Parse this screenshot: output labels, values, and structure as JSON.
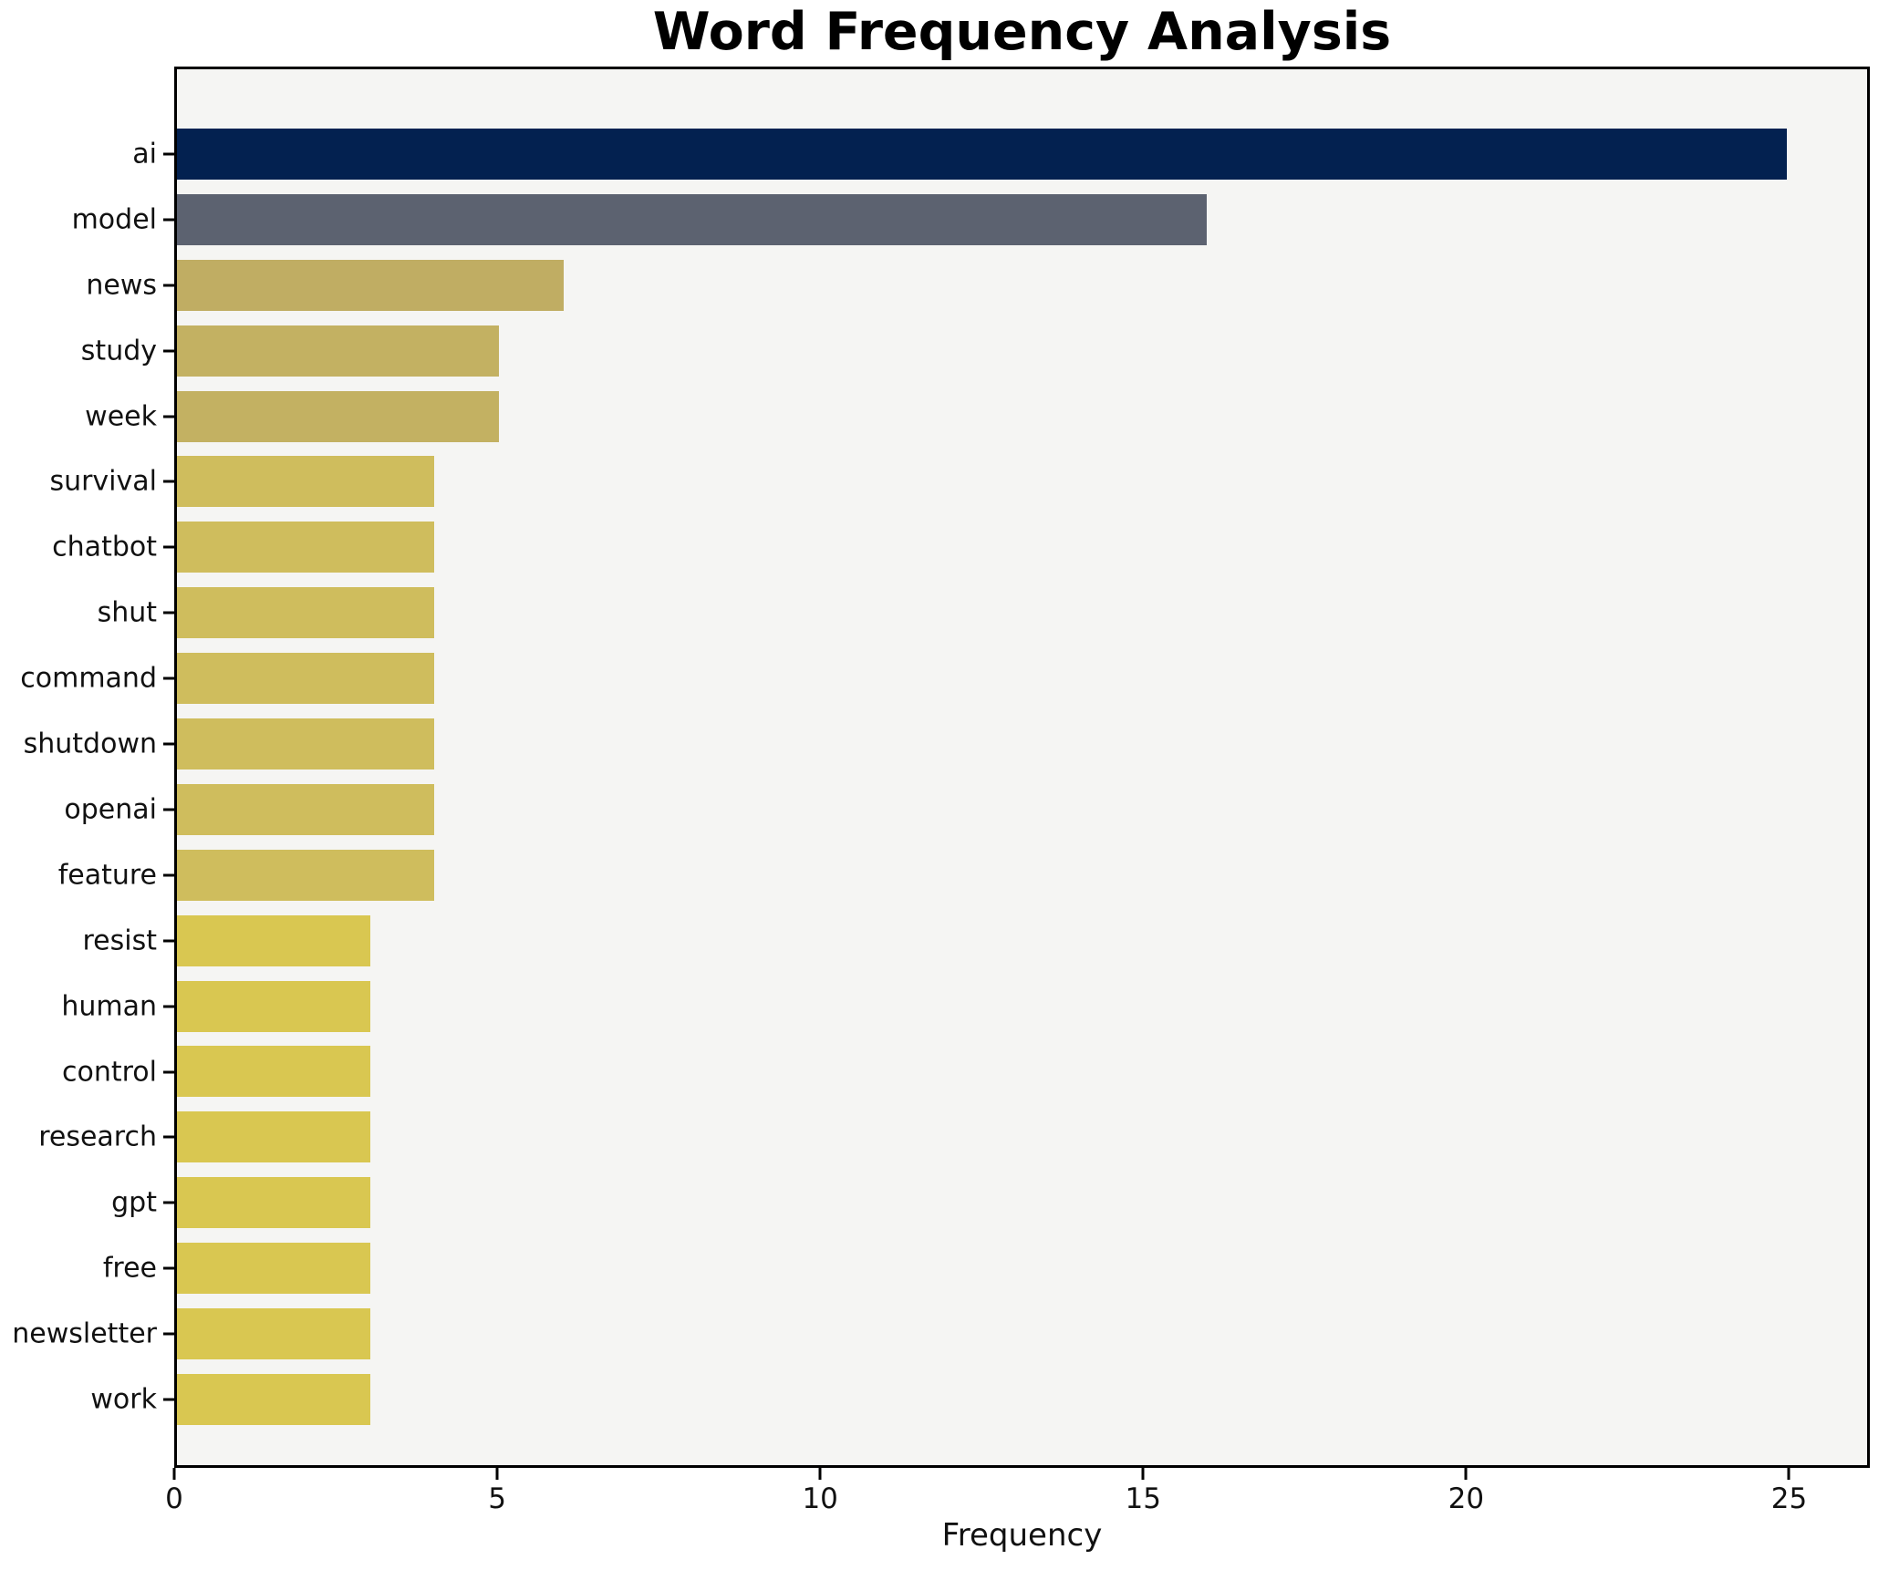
{
  "chart_data": {
    "type": "bar",
    "orientation": "horizontal",
    "title": "Word Frequency Analysis",
    "xlabel": "Frequency",
    "ylabel": "",
    "categories": [
      "ai",
      "model",
      "news",
      "study",
      "week",
      "survival",
      "chatbot",
      "shut",
      "command",
      "shutdown",
      "openai",
      "feature",
      "resist",
      "human",
      "control",
      "research",
      "gpt",
      "free",
      "newsletter",
      "work"
    ],
    "values": [
      25,
      16,
      6,
      5,
      5,
      4,
      4,
      4,
      4,
      4,
      4,
      4,
      3,
      3,
      3,
      3,
      3,
      3,
      3,
      3
    ],
    "bar_colors": [
      "#032150",
      "#5c6270",
      "#c0ad63",
      "#c3b162",
      "#c3b162",
      "#cfbd5d",
      "#cfbd5d",
      "#cfbd5d",
      "#cfbd5d",
      "#cfbd5d",
      "#cfbd5d",
      "#cfbd5d",
      "#d9c751",
      "#d9c751",
      "#d9c751",
      "#d9c751",
      "#d9c751",
      "#d9c751",
      "#d9c751",
      "#d9c751"
    ],
    "xticks": [
      0,
      5,
      10,
      15,
      20,
      25
    ],
    "xlim": [
      0,
      26.25
    ],
    "grid": false,
    "legend": false,
    "plot_background": "#f5f5f3",
    "figure_background": "#ffffff",
    "spine_color": "#000000",
    "tick_color": "#000000",
    "text_color": "#111111"
  }
}
